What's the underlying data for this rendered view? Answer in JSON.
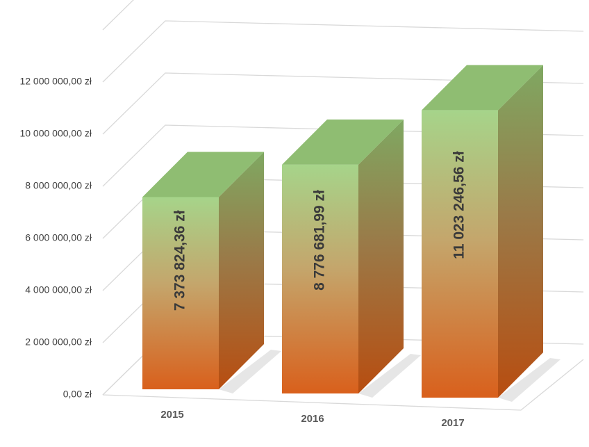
{
  "chart_data": {
    "type": "bar3d",
    "categories": [
      "2015",
      "2016",
      "2017"
    ],
    "values": [
      7373824.36,
      8776681.99,
      11023246.56
    ],
    "value_labels": [
      "7 373 824,36 zł",
      "8 776 681,99 zł",
      "11 023 246,56 zł"
    ],
    "ylim": [
      0,
      14000000
    ],
    "yticks": [
      {
        "value": 0,
        "label": "0,00 zł"
      },
      {
        "value": 2000000,
        "label": "2 000 000,00 zł"
      },
      {
        "value": 4000000,
        "label": "4 000 000,00 zł"
      },
      {
        "value": 6000000,
        "label": "6 000 000,00 zł"
      },
      {
        "value": 8000000,
        "label": "8 000 000,00 zł"
      },
      {
        "value": 10000000,
        "label": "10 000 000,00 zł"
      },
      {
        "value": 12000000,
        "label": "12 000 000,00 zł"
      }
    ],
    "grid": true
  }
}
